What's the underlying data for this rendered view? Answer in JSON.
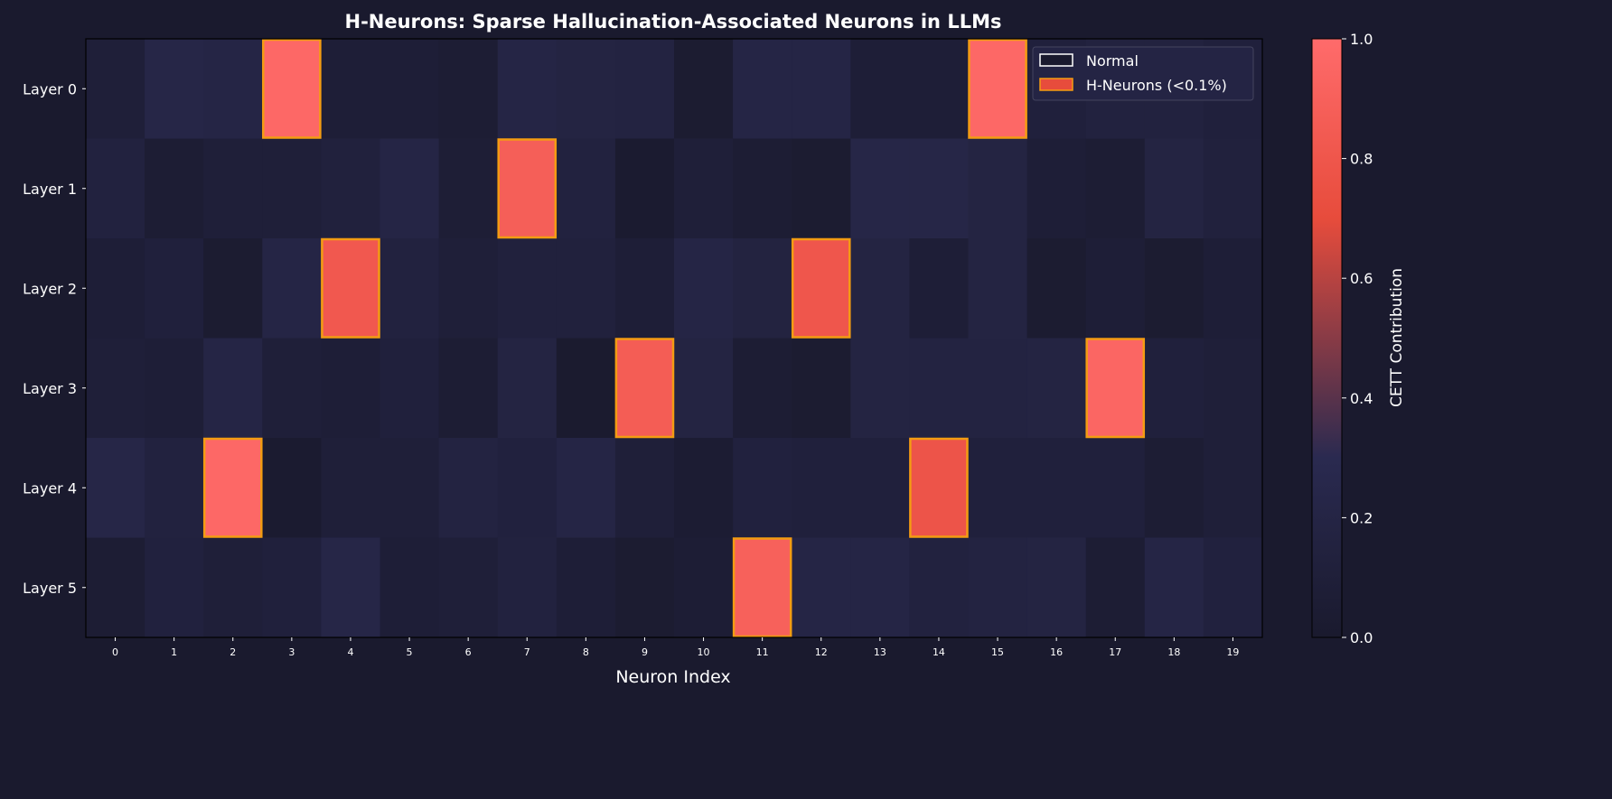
{
  "chart_data": {
    "type": "heatmap",
    "title": "H-Neurons: Sparse Hallucination-Associated Neurons in LLMs",
    "xlabel": "Neuron Index",
    "ylabel": "",
    "x_categories": [
      "0",
      "1",
      "2",
      "3",
      "4",
      "5",
      "6",
      "7",
      "8",
      "9",
      "10",
      "11",
      "12",
      "13",
      "14",
      "15",
      "16",
      "17",
      "18",
      "19"
    ],
    "y_categories": [
      "Layer 0",
      "Layer 1",
      "Layer 2",
      "Layer 3",
      "Layer 4",
      "Layer 5"
    ],
    "values": [
      [
        0.1,
        0.22,
        0.2,
        0.97,
        0.08,
        0.08,
        0.05,
        0.2,
        0.18,
        0.17,
        0.03,
        0.2,
        0.2,
        0.08,
        0.08,
        0.97,
        0.12,
        0.15,
        0.15,
        0.12
      ],
      [
        0.15,
        0.05,
        0.1,
        0.1,
        0.13,
        0.2,
        0.07,
        0.88,
        0.15,
        0.02,
        0.1,
        0.05,
        0.03,
        0.22,
        0.22,
        0.18,
        0.08,
        0.05,
        0.18,
        0.13
      ],
      [
        0.08,
        0.12,
        0.03,
        0.2,
        0.82,
        0.15,
        0.1,
        0.13,
        0.13,
        0.08,
        0.2,
        0.16,
        0.8,
        0.18,
        0.08,
        0.18,
        0.03,
        0.08,
        0.03,
        0.08
      ],
      [
        0.1,
        0.08,
        0.2,
        0.1,
        0.08,
        0.12,
        0.05,
        0.18,
        0.01,
        0.86,
        0.18,
        0.05,
        0.03,
        0.18,
        0.17,
        0.17,
        0.18,
        0.95,
        0.12,
        0.1
      ],
      [
        0.22,
        0.15,
        0.97,
        0.02,
        0.1,
        0.1,
        0.17,
        0.14,
        0.2,
        0.1,
        0.04,
        0.14,
        0.12,
        0.12,
        0.78,
        0.12,
        0.12,
        0.12,
        0.05,
        0.1
      ],
      [
        0.05,
        0.14,
        0.1,
        0.12,
        0.22,
        0.08,
        0.1,
        0.15,
        0.08,
        0.03,
        0.06,
        0.9,
        0.2,
        0.2,
        0.15,
        0.17,
        0.18,
        0.05,
        0.2,
        0.14
      ]
    ],
    "h_neurons": [
      [
        0,
        3
      ],
      [
        0,
        15
      ],
      [
        1,
        7
      ],
      [
        2,
        4
      ],
      [
        2,
        12
      ],
      [
        3,
        9
      ],
      [
        3,
        17
      ],
      [
        4,
        2
      ],
      [
        4,
        14
      ],
      [
        5,
        11
      ]
    ],
    "colorbar": {
      "label": "CETT Contribution",
      "range": [
        0.0,
        1.0
      ],
      "ticks": [
        "0.0",
        "0.2",
        "0.4",
        "0.6",
        "0.8",
        "1.0"
      ],
      "colormap": [
        "#1a1a2e",
        "#2a2a50",
        "#e74c3c",
        "#ff6b6b"
      ]
    },
    "legend": {
      "placement": "top-right",
      "entries": [
        {
          "label": "Normal",
          "fill": "#1a1a2e",
          "edge": "#ffffff"
        },
        {
          "label": "H-Neurons (<0.1%)",
          "fill": "#e74c3c",
          "edge": "#f39c12"
        }
      ]
    },
    "highlight_edge_color": "#f39c12",
    "background": "#1a1a2e"
  }
}
